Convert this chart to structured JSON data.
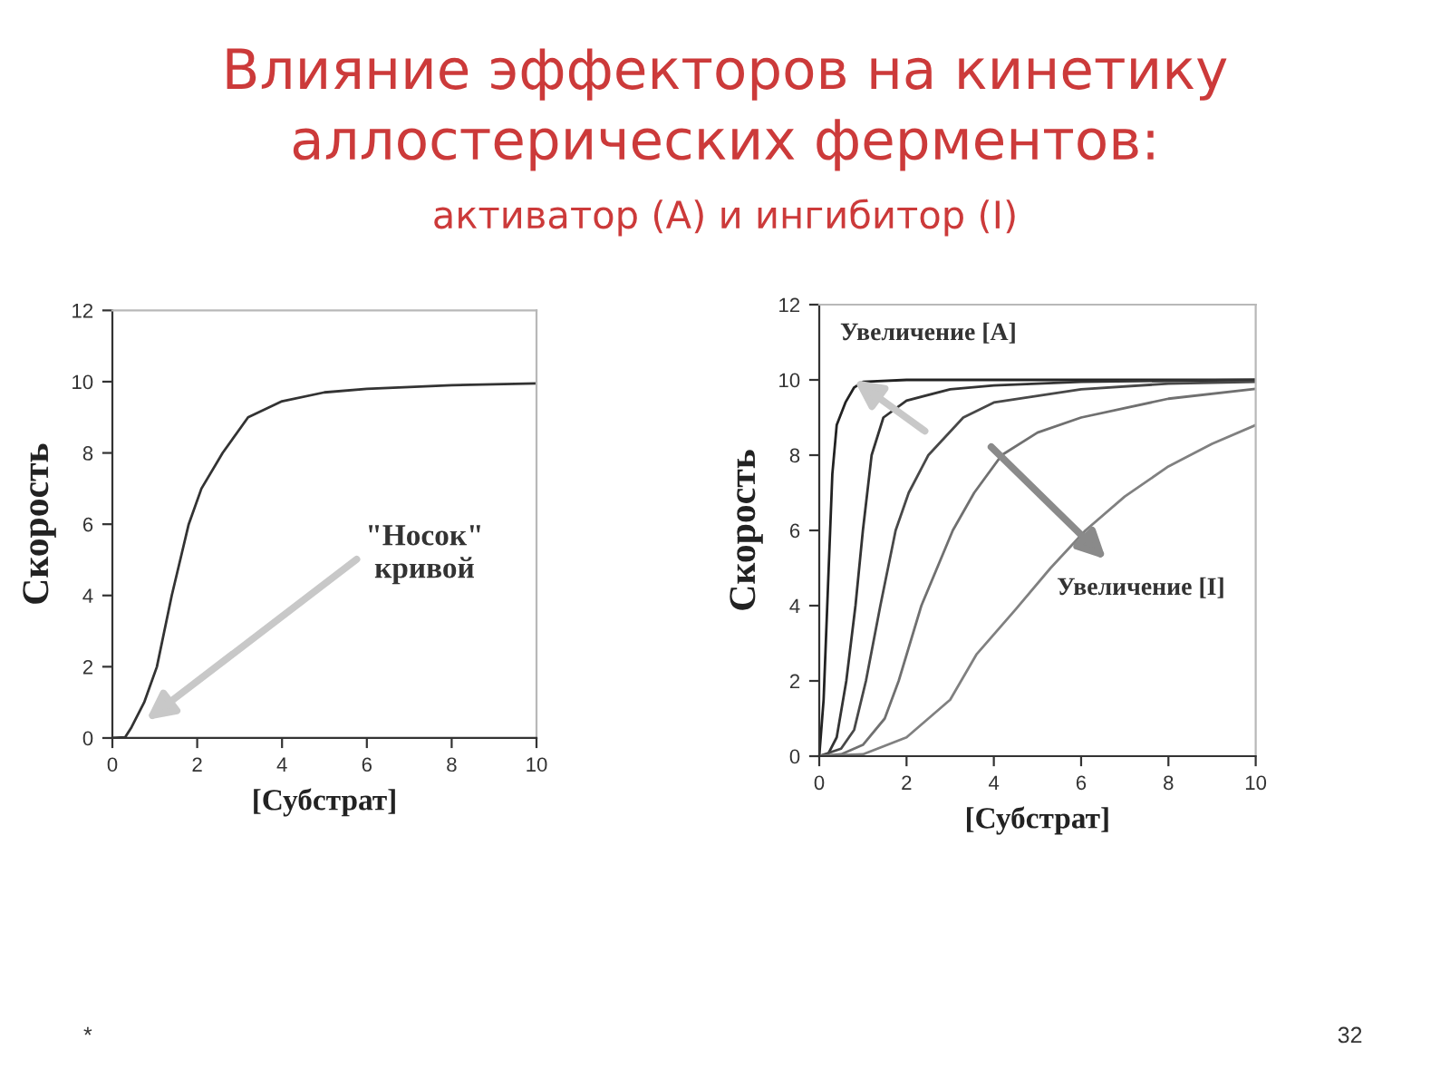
{
  "chart_data": [
    {
      "type": "line",
      "title": "Влияние эффекторов на кинетику аллостерических ферментов:",
      "subtitle": "активатор (A) и ингибитор (I)",
      "xlabel": "[Субстрат]",
      "ylabel": "Скорость",
      "xlim": [
        0,
        10
      ],
      "ylim": [
        0,
        12
      ],
      "xticks": [
        0,
        2,
        4,
        6,
        8,
        10
      ],
      "yticks": [
        0,
        2,
        4,
        6,
        8,
        10,
        12
      ],
      "series": [
        {
          "color": "#333333",
          "x": [
            0,
            0.3,
            0.45,
            0.75,
            1.05,
            1.4,
            1.6,
            1.8,
            2.1,
            2.6,
            3.2,
            4.0,
            5.0,
            6.0,
            8.0,
            10.0
          ],
          "values": [
            0,
            0.02,
            0.3,
            1,
            2,
            4,
            5,
            6,
            7,
            8,
            9,
            9.45,
            9.7,
            9.8,
            9.9,
            9.95
          ]
        }
      ],
      "annotations": [
        {
          "text": "\"Носок\"\nкривой",
          "x": 0.8,
          "y": 0.5
        },
        "*",
        "32"
      ]
    },
    {
      "type": "line",
      "xlabel": "[Субстрат]",
      "ylabel": "Скорость",
      "xlim": [
        0,
        10
      ],
      "ylim": [
        0,
        12
      ],
      "xticks": [
        0,
        2,
        4,
        6,
        8,
        10
      ],
      "yticks": [
        0,
        2,
        4,
        6,
        8,
        10,
        12
      ],
      "series": [
        {
          "color": "#222222",
          "x": [
            0,
            0.1,
            0.2,
            0.3,
            0.4,
            0.6,
            0.8,
            1.0,
            2.0,
            10.0
          ],
          "values": [
            0,
            1.5,
            4.5,
            7.5,
            8.8,
            9.4,
            9.8,
            9.95,
            10,
            10
          ]
        },
        {
          "color": "#333333",
          "x": [
            0,
            0.2,
            0.4,
            0.62,
            0.83,
            1.0,
            1.2,
            1.47,
            2.0,
            3.0,
            4.0,
            6.0,
            10.0
          ],
          "values": [
            0,
            0.05,
            0.5,
            2,
            4,
            6,
            8,
            9,
            9.45,
            9.75,
            9.85,
            9.95,
            10
          ]
        },
        {
          "color": "#484848",
          "x": [
            0,
            0.5,
            0.8,
            1.07,
            1.4,
            1.75,
            2.05,
            2.5,
            3.3,
            4.0,
            6.0,
            8.0,
            10.0
          ],
          "values": [
            0,
            0.2,
            0.7,
            2,
            4,
            6,
            7,
            8,
            9,
            9.4,
            9.75,
            9.9,
            9.95
          ]
        },
        {
          "color": "#707070",
          "x": [
            0,
            0.5,
            1.0,
            1.5,
            1.82,
            2.34,
            3.06,
            3.55,
            4.18,
            5.0,
            6.0,
            7.0,
            8.0,
            10.0
          ],
          "values": [
            0,
            0.05,
            0.3,
            1,
            2,
            4,
            6,
            7,
            8,
            8.6,
            9,
            9.25,
            9.5,
            9.76
          ]
        },
        {
          "color": "#808080",
          "x": [
            0,
            1.0,
            2.0,
            3.0,
            3.6,
            4.5,
            5.3,
            6.1,
            7.0,
            8.0,
            9.0,
            10.0
          ],
          "values": [
            0,
            0.05,
            0.5,
            1.5,
            2.7,
            3.9,
            5,
            6,
            6.9,
            7.7,
            8.3,
            8.8
          ]
        }
      ],
      "annotations": [
        {
          "text": "Увеличение [A]",
          "x": 0.8,
          "y": 10
        },
        "Увеличение [I]"
      ]
    }
  ]
}
